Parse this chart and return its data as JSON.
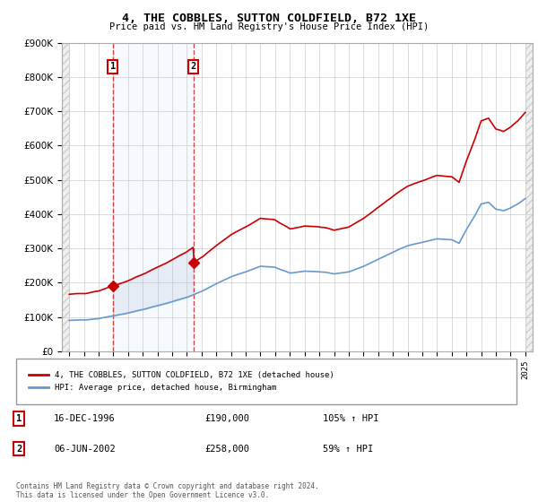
{
  "title": "4, THE COBBLES, SUTTON COLDFIELD, B72 1XE",
  "subtitle": "Price paid vs. HM Land Registry's House Price Index (HPI)",
  "legend_entry1": "4, THE COBBLES, SUTTON COLDFIELD, B72 1XE (detached house)",
  "legend_entry2": "HPI: Average price, detached house, Birmingham",
  "transaction1_date": "16-DEC-1996",
  "transaction1_price": 190000,
  "transaction1_hpi": "105% ↑ HPI",
  "transaction1_year": 1996.96,
  "transaction2_date": "06-JUN-2002",
  "transaction2_price": 258000,
  "transaction2_hpi": "59% ↑ HPI",
  "transaction2_year": 2002.44,
  "footer": "Contains HM Land Registry data © Crown copyright and database right 2024.\nThis data is licensed under the Open Government Licence v3.0.",
  "hpi_color": "#6699cc",
  "price_color": "#cc0000",
  "ylim_max": 900000,
  "ylim_min": 0,
  "years": [
    1994,
    1994.083,
    1994.167,
    1994.25,
    1994.333,
    1994.417,
    1994.5,
    1994.583,
    1994.667,
    1994.75,
    1994.833,
    1994.917,
    1995,
    1995.083,
    1995.167,
    1995.25,
    1995.333,
    1995.417,
    1995.5,
    1995.583,
    1995.667,
    1995.75,
    1995.833,
    1995.917,
    1996,
    1996.083,
    1996.167,
    1996.25,
    1996.333,
    1996.417,
    1996.5,
    1996.583,
    1996.667,
    1996.75,
    1996.833,
    1996.917,
    1997,
    1997.083,
    1997.167,
    1997.25,
    1997.333,
    1997.417,
    1997.5,
    1997.583,
    1997.667,
    1997.75,
    1997.833,
    1997.917,
    1998,
    1998.083,
    1998.167,
    1998.25,
    1998.333,
    1998.417,
    1998.5,
    1998.583,
    1998.667,
    1998.75,
    1998.833,
    1998.917,
    1999,
    1999.083,
    1999.167,
    1999.25,
    1999.333,
    1999.417,
    1999.5,
    1999.583,
    1999.667,
    1999.75,
    1999.833,
    1999.917,
    2000,
    2000.083,
    2000.167,
    2000.25,
    2000.333,
    2000.417,
    2000.5,
    2000.583,
    2000.667,
    2000.75,
    2000.833,
    2000.917,
    2001,
    2001.083,
    2001.167,
    2001.25,
    2001.333,
    2001.417,
    2001.5,
    2001.583,
    2001.667,
    2001.75,
    2001.833,
    2001.917,
    2002,
    2002.083,
    2002.167,
    2002.25,
    2002.333,
    2002.417,
    2002.5,
    2002.583,
    2002.667,
    2002.75,
    2002.833,
    2002.917,
    2003,
    2003.083,
    2003.167,
    2003.25,
    2003.333,
    2003.417,
    2003.5,
    2003.583,
    2003.667,
    2003.75,
    2003.833,
    2003.917,
    2004,
    2004.083,
    2004.167,
    2004.25,
    2004.333,
    2004.417,
    2004.5,
    2004.583,
    2004.667,
    2004.75,
    2004.833,
    2004.917,
    2005,
    2005.083,
    2005.167,
    2005.25,
    2005.333,
    2005.417,
    2005.5,
    2005.583,
    2005.667,
    2005.75,
    2005.833,
    2005.917,
    2006,
    2006.083,
    2006.167,
    2006.25,
    2006.333,
    2006.417,
    2006.5,
    2006.583,
    2006.667,
    2006.75,
    2006.833,
    2006.917,
    2007,
    2007.083,
    2007.167,
    2007.25,
    2007.333,
    2007.417,
    2007.5,
    2007.583,
    2007.667,
    2007.75,
    2007.833,
    2007.917,
    2008,
    2008.083,
    2008.167,
    2008.25,
    2008.333,
    2008.417,
    2008.5,
    2008.583,
    2008.667,
    2008.75,
    2008.833,
    2008.917,
    2009,
    2009.083,
    2009.167,
    2009.25,
    2009.333,
    2009.417,
    2009.5,
    2009.583,
    2009.667,
    2009.75,
    2009.833,
    2009.917,
    2010,
    2010.083,
    2010.167,
    2010.25,
    2010.333,
    2010.417,
    2010.5,
    2010.583,
    2010.667,
    2010.75,
    2010.833,
    2010.917,
    2011,
    2011.083,
    2011.167,
    2011.25,
    2011.333,
    2011.417,
    2011.5,
    2011.583,
    2011.667,
    2011.75,
    2011.833,
    2011.917,
    2012,
    2012.083,
    2012.167,
    2012.25,
    2012.333,
    2012.417,
    2012.5,
    2012.583,
    2012.667,
    2012.75,
    2012.833,
    2012.917,
    2013,
    2013.083,
    2013.167,
    2013.25,
    2013.333,
    2013.417,
    2013.5,
    2013.583,
    2013.667,
    2013.75,
    2013.833,
    2013.917,
    2014,
    2014.083,
    2014.167,
    2014.25,
    2014.333,
    2014.417,
    2014.5,
    2014.583,
    2014.667,
    2014.75,
    2014.833,
    2014.917,
    2015,
    2015.083,
    2015.167,
    2015.25,
    2015.333,
    2015.417,
    2015.5,
    2015.583,
    2015.667,
    2015.75,
    2015.833,
    2015.917,
    2016,
    2016.083,
    2016.167,
    2016.25,
    2016.333,
    2016.417,
    2016.5,
    2016.583,
    2016.667,
    2016.75,
    2016.833,
    2016.917,
    2017,
    2017.083,
    2017.167,
    2017.25,
    2017.333,
    2017.417,
    2017.5,
    2017.583,
    2017.667,
    2017.75,
    2017.833,
    2017.917,
    2018,
    2018.083,
    2018.167,
    2018.25,
    2018.333,
    2018.417,
    2018.5,
    2018.583,
    2018.667,
    2018.75,
    2018.833,
    2018.917,
    2019,
    2019.083,
    2019.167,
    2019.25,
    2019.333,
    2019.417,
    2019.5,
    2019.583,
    2019.667,
    2019.75,
    2019.833,
    2019.917,
    2020,
    2020.083,
    2020.167,
    2020.25,
    2020.333,
    2020.417,
    2020.5,
    2020.583,
    2020.667,
    2020.75,
    2020.833,
    2020.917,
    2021,
    2021.083,
    2021.167,
    2021.25,
    2021.333,
    2021.417,
    2021.5,
    2021.583,
    2021.667,
    2021.75,
    2021.833,
    2021.917,
    2022,
    2022.083,
    2022.167,
    2022.25,
    2022.333,
    2022.417,
    2022.5,
    2022.583,
    2022.667,
    2022.75,
    2022.833,
    2022.917,
    2023,
    2023.083,
    2023.167,
    2023.25,
    2023.333,
    2023.417,
    2023.5,
    2023.583,
    2023.667,
    2023.75,
    2023.833,
    2023.917,
    2024,
    2024.083,
    2024.167,
    2024.25,
    2024.333,
    2024.417,
    2024.5,
    2024.583,
    2024.667,
    2024.75,
    2024.833,
    2024.917,
    2025
  ]
}
